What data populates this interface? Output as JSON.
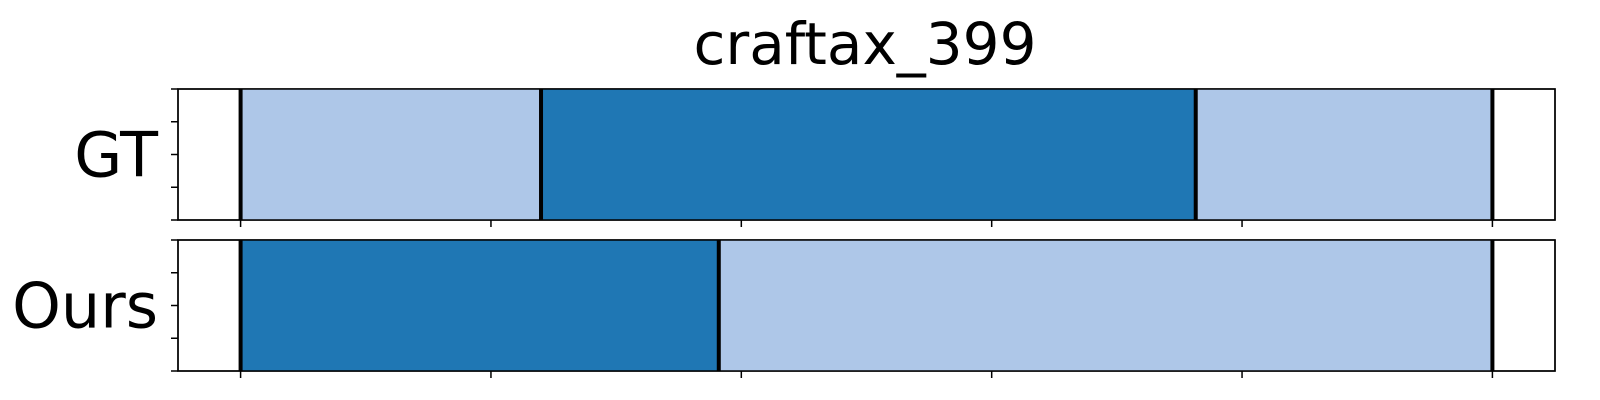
{
  "chart_data": {
    "type": "bar",
    "orientation": "horizontal-segments",
    "title": "craftax_399",
    "xlim": [
      -0.05,
      1.05
    ],
    "x_ticks": [
      0,
      0.2,
      0.4,
      0.6,
      0.8,
      1.0
    ],
    "x_tick_labels_shown": false,
    "y_ticks_per_row": 5,
    "colors": {
      "light": "#aec7e8",
      "dark": "#1f77b4",
      "boundary": "#000000"
    },
    "rows": [
      {
        "label": "GT",
        "segments": [
          {
            "start": 0.0,
            "end": 0.24,
            "color": "light"
          },
          {
            "start": 0.24,
            "end": 0.763,
            "color": "dark"
          },
          {
            "start": 0.763,
            "end": 1.0,
            "color": "light"
          }
        ],
        "boundaries": [
          0.0,
          0.24,
          0.763,
          1.0
        ]
      },
      {
        "label": "Ours",
        "segments": [
          {
            "start": 0.0,
            "end": 0.382,
            "color": "dark"
          },
          {
            "start": 0.382,
            "end": 1.0,
            "color": "light"
          }
        ],
        "boundaries": [
          0.0,
          0.382,
          1.0
        ]
      }
    ]
  }
}
